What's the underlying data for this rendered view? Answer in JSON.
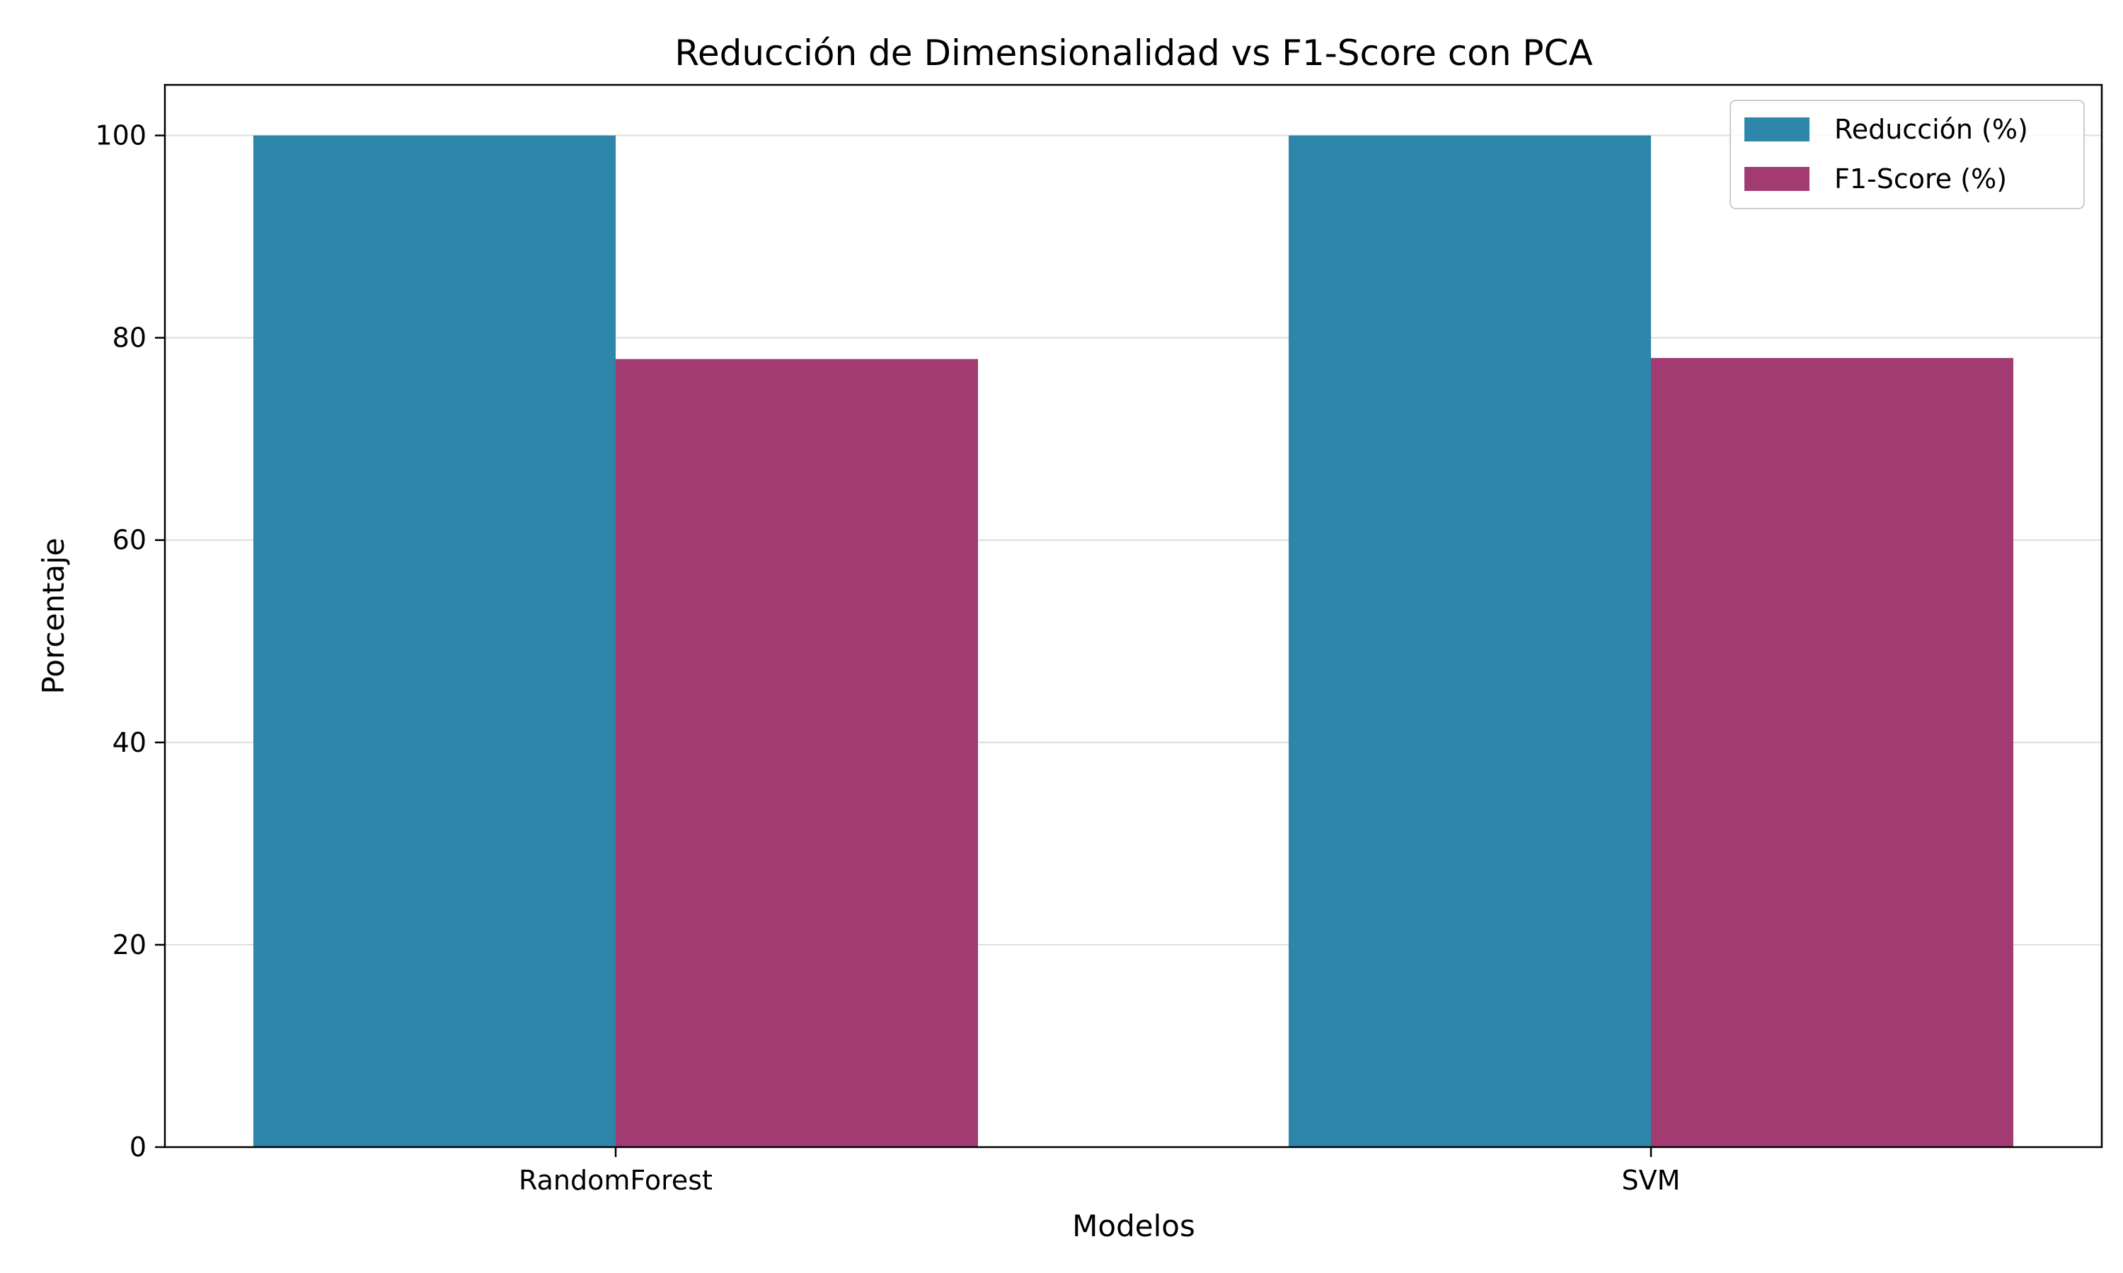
{
  "chart_data": {
    "type": "bar",
    "title": "Reducción de Dimensionalidad vs F1-Score con PCA",
    "xlabel": "Modelos",
    "ylabel": "Porcentaje",
    "categories": [
      "RandomForest",
      "SVM"
    ],
    "series": [
      {
        "name": "Reducción (%)",
        "values": [
          100,
          100
        ],
        "color": "#2e86ab"
      },
      {
        "name": "F1-Score (%)",
        "values": [
          77.9,
          78.0
        ],
        "color": "#a23b72"
      }
    ],
    "ylim": [
      0,
      105
    ],
    "yticks": [
      0,
      20,
      40,
      60,
      80,
      100
    ],
    "grid": "y",
    "legend_position": "top-right"
  }
}
